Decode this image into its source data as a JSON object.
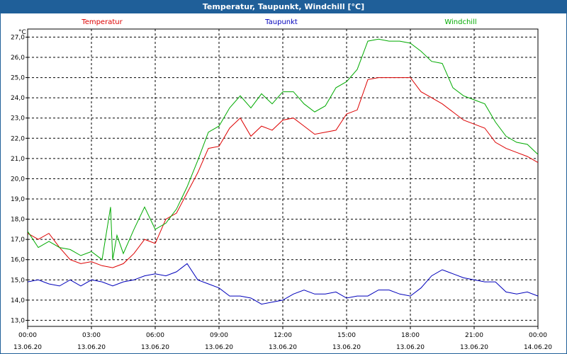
{
  "window": {
    "title": "Temperatur, Taupunkt, Windchill [°C]"
  },
  "chart_data": {
    "type": "line",
    "title": "Temperatur, Taupunkt, Windchill [°C]",
    "ylabel": "°C",
    "xlabel": "",
    "ylim": [
      12.7,
      27.4
    ],
    "xlim": [
      0,
      24
    ],
    "grid": true,
    "y_ticks": [
      "13,0",
      "14,0",
      "15,0",
      "16,0",
      "17,0",
      "18,0",
      "19,0",
      "20,0",
      "21,0",
      "22,0",
      "23,0",
      "24,0",
      "25,0",
      "26,0",
      "27,0"
    ],
    "x_ticks": [
      {
        "time": "00:00",
        "date": "13.06.20"
      },
      {
        "time": "03:00",
        "date": "13.06.20"
      },
      {
        "time": "06:00",
        "date": "13.06.20"
      },
      {
        "time": "09:00",
        "date": "13.06.20"
      },
      {
        "time": "12:00",
        "date": "13.06.20"
      },
      {
        "time": "15:00",
        "date": "13.06.20"
      },
      {
        "time": "18:00",
        "date": "13.06.20"
      },
      {
        "time": "21:00",
        "date": "13.06.20"
      },
      {
        "time": "00:00",
        "date": "14.06.20"
      }
    ],
    "series": [
      {
        "name": "Temperatur",
        "color": "#dd0000",
        "x": [
          0,
          0.5,
          1,
          1.5,
          2,
          2.5,
          3,
          3.5,
          4,
          4.5,
          5,
          5.5,
          6,
          6.5,
          7,
          7.5,
          8,
          8.5,
          9,
          9.5,
          10,
          10.5,
          11,
          11.5,
          12,
          12.5,
          13,
          13.5,
          14,
          14.5,
          15,
          15.5,
          16,
          16.5,
          17,
          17.5,
          18,
          18.5,
          19,
          19.5,
          20,
          20.5,
          21,
          21.5,
          22,
          22.5,
          23,
          23.5,
          24
        ],
        "values": [
          17.3,
          17.0,
          17.3,
          16.6,
          16.0,
          15.8,
          15.9,
          15.7,
          15.6,
          15.8,
          16.3,
          17.0,
          16.8,
          18.0,
          18.3,
          19.3,
          20.3,
          21.5,
          21.6,
          22.5,
          23.0,
          22.1,
          22.6,
          22.4,
          22.9,
          23.0,
          22.6,
          22.2,
          22.3,
          22.4,
          23.2,
          23.4,
          24.9,
          25.0,
          25.0,
          25.0,
          25.0,
          24.3,
          24.0,
          23.7,
          23.3,
          22.9,
          22.7,
          22.5,
          21.8,
          21.5,
          21.3,
          21.1,
          20.8
        ]
      },
      {
        "name": "Taupunkt",
        "color": "#0000bb",
        "x": [
          0,
          0.5,
          1,
          1.5,
          2,
          2.5,
          3,
          3.5,
          4,
          4.5,
          5,
          5.5,
          6,
          6.5,
          7,
          7.5,
          8,
          8.5,
          9,
          9.5,
          10,
          10.5,
          11,
          11.5,
          12,
          12.5,
          13,
          13.5,
          14,
          14.5,
          15,
          15.5,
          16,
          16.5,
          17,
          17.5,
          18,
          18.5,
          19,
          19.5,
          20,
          20.5,
          21,
          21.5,
          22,
          22.5,
          23,
          23.5,
          24
        ],
        "values": [
          14.9,
          15.0,
          14.8,
          14.7,
          15.0,
          14.7,
          15.0,
          14.9,
          14.7,
          14.9,
          15.0,
          15.2,
          15.3,
          15.2,
          15.4,
          15.8,
          15.0,
          14.8,
          14.6,
          14.2,
          14.2,
          14.1,
          13.8,
          13.9,
          14.0,
          14.3,
          14.5,
          14.3,
          14.3,
          14.4,
          14.1,
          14.2,
          14.2,
          14.5,
          14.5,
          14.3,
          14.2,
          14.6,
          15.2,
          15.5,
          15.3,
          15.1,
          15.0,
          14.9,
          14.9,
          14.4,
          14.3,
          14.4,
          14.2
        ]
      },
      {
        "name": "Windchill",
        "color": "#00aa00",
        "x": [
          0,
          0.5,
          1,
          1.5,
          2,
          2.5,
          3,
          3.5,
          3.9,
          4,
          4.2,
          4.5,
          5,
          5.5,
          6,
          6.5,
          7,
          7.5,
          8,
          8.5,
          9,
          9.5,
          10,
          10.5,
          11,
          11.5,
          12,
          12.5,
          13,
          13.5,
          14,
          14.5,
          15,
          15.5,
          16,
          16.5,
          17,
          17.5,
          18,
          18.5,
          19,
          19.5,
          20,
          20.5,
          21,
          21.5,
          22,
          22.5,
          23,
          23.5,
          24
        ],
        "values": [
          17.4,
          16.6,
          16.9,
          16.6,
          16.5,
          16.2,
          16.4,
          16.0,
          18.6,
          16.0,
          17.2,
          16.3,
          17.5,
          18.6,
          17.5,
          17.8,
          18.5,
          19.6,
          20.9,
          22.3,
          22.6,
          23.5,
          24.1,
          23.5,
          24.2,
          23.7,
          24.3,
          24.3,
          23.7,
          23.3,
          23.6,
          24.5,
          24.8,
          25.4,
          26.8,
          26.9,
          26.8,
          26.8,
          26.7,
          26.3,
          25.8,
          25.7,
          24.5,
          24.1,
          23.9,
          23.7,
          22.8,
          22.1,
          21.8,
          21.7,
          21.2
        ]
      }
    ]
  }
}
